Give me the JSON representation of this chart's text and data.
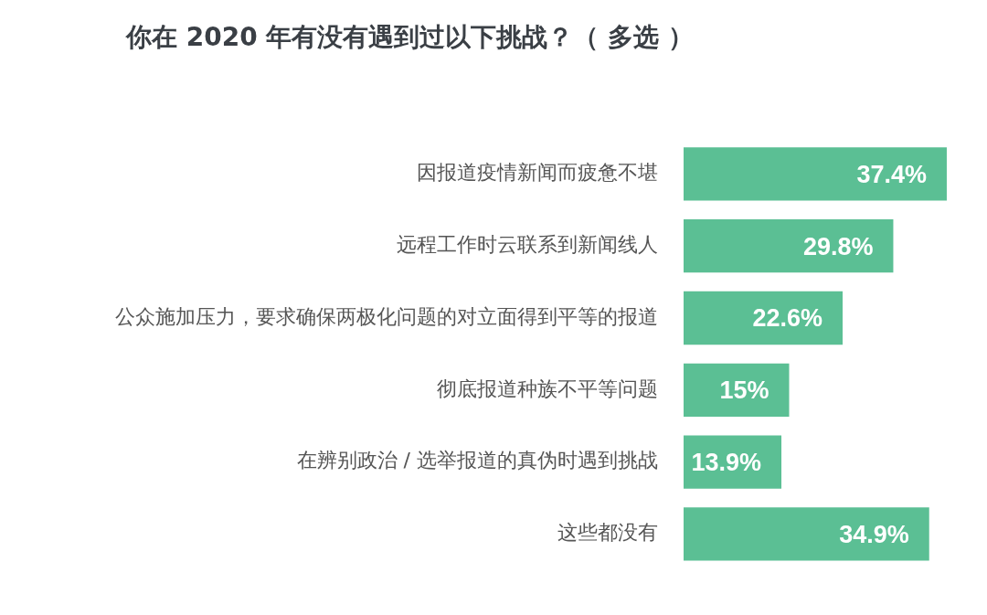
{
  "chart_data": {
    "type": "bar",
    "orientation": "horizontal",
    "title": "你在 2020 年有没有遇到过以下挑战？（ 多选 ）",
    "categories": [
      "因报道疫情新闻而疲惫不堪",
      "远程工作时云联系到新闻线人",
      "公众施加压力，要求确保两极化问题的对立面得到平等的报道",
      "彻底报道种族不平等问题",
      "在辨别政治 / 选举报道的真伪时遇到挑战",
      "这些都没有"
    ],
    "values": [
      37.4,
      29.8,
      22.6,
      15,
      13.9,
      34.9
    ],
    "value_labels": [
      "37.4%",
      "29.8%",
      "22.6%",
      "15%",
      "13.9%",
      "34.9%"
    ],
    "color": "#5bbf94",
    "legend": false
  }
}
